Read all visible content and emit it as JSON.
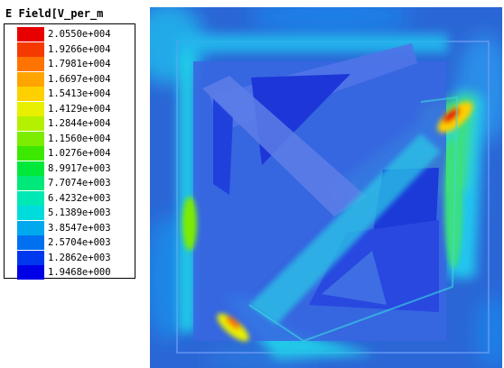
{
  "legend": {
    "title": "E Field[V_per_m",
    "levels": [
      {
        "label": "2.0550e+004",
        "color": "#e80000"
      },
      {
        "label": "1.9266e+004",
        "color": "#f53a00"
      },
      {
        "label": "1.7981e+004",
        "color": "#ff7400"
      },
      {
        "label": "1.6697e+004",
        "color": "#ffa400"
      },
      {
        "label": "1.5413e+004",
        "color": "#ffd000"
      },
      {
        "label": "1.4129e+004",
        "color": "#e8f000"
      },
      {
        "label": "1.2844e+004",
        "color": "#b4f000"
      },
      {
        "label": "1.1560e+004",
        "color": "#7cec00"
      },
      {
        "label": "1.0276e+004",
        "color": "#3ce800"
      },
      {
        "label": "8.9917e+003",
        "color": "#00e83a"
      },
      {
        "label": "7.7074e+003",
        "color": "#00e87a"
      },
      {
        "label": "6.4232e+003",
        "color": "#00e8b4"
      },
      {
        "label": "5.1389e+003",
        "color": "#00dcdc"
      },
      {
        "label": "3.8547e+003",
        "color": "#00a8ee"
      },
      {
        "label": "2.5704e+003",
        "color": "#0070f0"
      },
      {
        "label": "1.2862e+003",
        "color": "#0038ee"
      },
      {
        "label": "1.9468e+000",
        "color": "#0000e6"
      }
    ]
  },
  "plot": {
    "description_icon": "field-plot-icon",
    "colors": {
      "background": "#2a63d8",
      "frame": "#3d6fe0",
      "inner": "#2f5be8",
      "dark": "#1f3fdc",
      "cyan": "#20d6f0",
      "green": "#3ee07a",
      "yellow": "#e8f000",
      "red": "#e80000"
    }
  }
}
